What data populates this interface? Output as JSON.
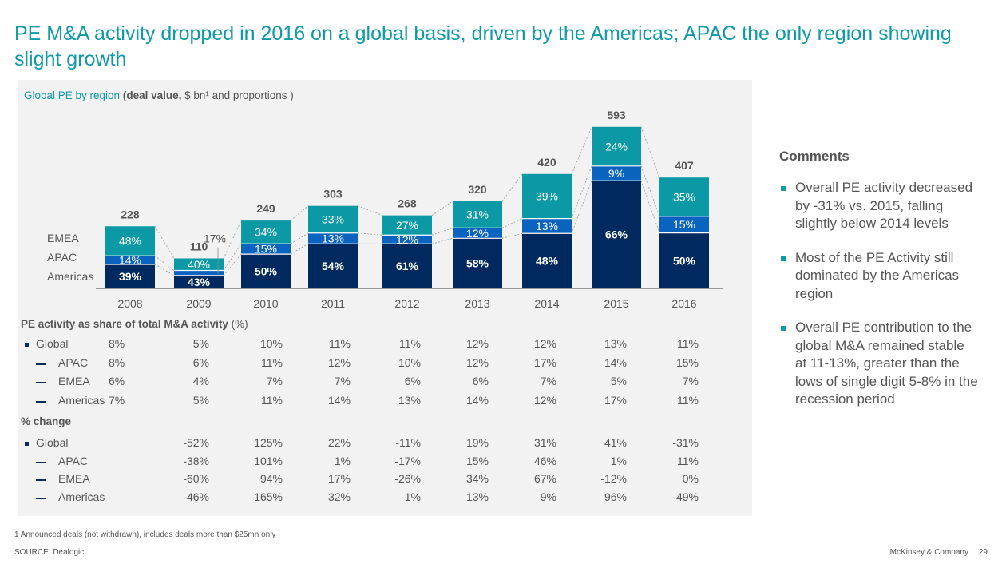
{
  "title": "PE M&A activity dropped in 2016 on a global basis, driven by the Americas; APAC the only region showing slight growth",
  "subtitle": {
    "prefix": "Global PE by region ",
    "bold": "(deal value,",
    "rest": " $ bn¹ and proportions )"
  },
  "legend": [
    "EMEA",
    "APAC",
    "Americas"
  ],
  "colors": {
    "americas": "#002960",
    "apac": "#0a63be",
    "emea": "#0b9aa5",
    "accent": "#0e9aa7"
  },
  "chart_data": {
    "type": "bar",
    "stacked": true,
    "title": "Global PE by region (deal value, $ bn and proportions)",
    "categories": [
      "2008",
      "2009",
      "2010",
      "2011",
      "2012",
      "2013",
      "2014",
      "2015",
      "2016"
    ],
    "totals": [
      228,
      110,
      249,
      303,
      268,
      320,
      420,
      593,
      407
    ],
    "series": [
      {
        "name": "Americas",
        "values": [
          39,
          43,
          50,
          54,
          61,
          58,
          48,
          66,
          50
        ],
        "unit": "%"
      },
      {
        "name": "APAC",
        "values": [
          14,
          17,
          15,
          13,
          12,
          12,
          13,
          9,
          15
        ],
        "unit": "%"
      },
      {
        "name": "EMEA",
        "values": [
          48,
          40,
          34,
          33,
          27,
          31,
          39,
          24,
          35
        ],
        "unit": "%"
      }
    ],
    "ylim": [
      0,
      600
    ],
    "grid": false,
    "legend_position": "left"
  },
  "share_table": {
    "header": "PE activity as share of total M&A activity",
    "header_unit": " (%)",
    "rows": [
      {
        "label": "Global",
        "type": "bullet",
        "values": [
          "8%",
          "5%",
          "10%",
          "11%",
          "11%",
          "12%",
          "12%",
          "13%",
          "11%"
        ]
      },
      {
        "label": "APAC",
        "type": "dash",
        "values": [
          "8%",
          "6%",
          "11%",
          "12%",
          "10%",
          "12%",
          "17%",
          "14%",
          "15%"
        ]
      },
      {
        "label": "EMEA",
        "type": "dash",
        "values": [
          "6%",
          "4%",
          "7%",
          "7%",
          "6%",
          "6%",
          "7%",
          "5%",
          "7%"
        ]
      },
      {
        "label": "Americas",
        "type": "dash",
        "values": [
          "7%",
          "5%",
          "11%",
          "14%",
          "13%",
          "14%",
          "12%",
          "17%",
          "11%"
        ]
      }
    ]
  },
  "change_table": {
    "header": "% change",
    "rows": [
      {
        "label": "Global",
        "type": "bullet",
        "values": [
          "",
          "-52%",
          "125%",
          "22%",
          "-11%",
          "19%",
          "31%",
          "41%",
          "-31%"
        ]
      },
      {
        "label": "APAC",
        "type": "dash",
        "values": [
          "",
          "-38%",
          "101%",
          "1%",
          "-17%",
          "15%",
          "46%",
          "1%",
          "11%"
        ]
      },
      {
        "label": "EMEA",
        "type": "dash",
        "values": [
          "",
          "-60%",
          "94%",
          "17%",
          "-26%",
          "34%",
          "67%",
          "-12%",
          "0%"
        ]
      },
      {
        "label": "Americas",
        "type": "dash",
        "values": [
          "",
          "-46%",
          "165%",
          "32%",
          "-1%",
          "13%",
          "9%",
          "96%",
          "-49%"
        ]
      }
    ]
  },
  "comments": {
    "title": "Comments",
    "items": [
      "Overall PE activity decreased by -31% vs. 2015, falling slightly below 2014 levels",
      "Most of the PE Activity still dominated by the Americas region",
      "Overall PE contribution to the global M&A remained stable at 11-13%, greater than the lows of single digit 5-8% in the recession period"
    ]
  },
  "footnote": "1 Announced deals (not withdrawn), includes deals more than $25mn only",
  "source": "SOURCE: Dealogic",
  "brand": "McKinsey & Company",
  "page_number": "29"
}
